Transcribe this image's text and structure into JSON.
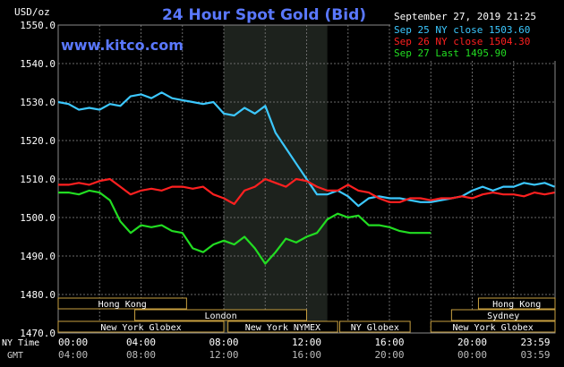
{
  "chart_data": {
    "type": "line",
    "title": "24 Hour Spot Gold (Bid)",
    "watermark": "www.kitco.com",
    "timestamp": "September 27, 2019 21:25",
    "ylabel": "USD/oz",
    "ylim": [
      1470,
      1550
    ],
    "y_ticks": [
      "1550.0",
      "1540.0",
      "1530.0",
      "1520.0",
      "1510.0",
      "1500.0",
      "1490.0",
      "1480.0",
      "1470.0"
    ],
    "x_row1_label": "NY Time",
    "x_row2_label": "GMT",
    "x_ticks_ny": [
      "00:00",
      "04:00",
      "08:00",
      "12:00",
      "16:00",
      "20:00",
      "23:59"
    ],
    "x_ticks_gmt": [
      "04:00",
      "08:00",
      "12:00",
      "16:00",
      "20:00",
      "00:00",
      "03:59"
    ],
    "grid": true,
    "background": "#000000",
    "grid_color": "#6a6a6a",
    "shaded_hours": [
      8,
      13
    ],
    "legend": [
      {
        "label": "Sep 25 NY close 1503.60",
        "color": "#3cc8ff"
      },
      {
        "label": "Sep 26 NY close 1504.30",
        "color": "#ff2020"
      },
      {
        "label": "Sep 27 Last 1495.90",
        "color": "#22dd22"
      }
    ],
    "series": [
      {
        "name": "Sep 25",
        "color": "#3cc8ff",
        "x": [
          0,
          0.5,
          1,
          1.5,
          2,
          2.5,
          3,
          3.5,
          4,
          4.5,
          5,
          5.5,
          6,
          6.5,
          7,
          7.5,
          8,
          8.5,
          9,
          9.5,
          10,
          10.5,
          11,
          11.5,
          12,
          12.5,
          13,
          13.5,
          14,
          14.5,
          15,
          15.5,
          16,
          16.5,
          17,
          17.5,
          18,
          18.5,
          19,
          19.5,
          20,
          20.5,
          21,
          21.5,
          22,
          22.5,
          23,
          23.5,
          23.98
        ],
        "y": [
          1530,
          1529.5,
          1528,
          1528.5,
          1528,
          1529.5,
          1529,
          1531.5,
          1532,
          1531,
          1532.5,
          1531,
          1530.5,
          1530,
          1529.5,
          1530,
          1527,
          1526.5,
          1528.5,
          1527,
          1529,
          1522,
          1518,
          1514,
          1510,
          1506,
          1506,
          1507,
          1505.5,
          1503,
          1505,
          1505.5,
          1505,
          1505,
          1504.5,
          1504,
          1504,
          1504.5,
          1505,
          1505.5,
          1507,
          1508,
          1507,
          1508,
          1508,
          1509,
          1508.5,
          1509,
          1508
        ]
      },
      {
        "name": "Sep 26",
        "color": "#ff2020",
        "x": [
          0,
          0.5,
          1,
          1.5,
          2,
          2.5,
          3,
          3.5,
          4,
          4.5,
          5,
          5.5,
          6,
          6.5,
          7,
          7.5,
          8,
          8.5,
          9,
          9.5,
          10,
          10.5,
          11,
          11.5,
          12,
          12.5,
          13,
          13.5,
          14,
          14.5,
          15,
          15.5,
          16,
          16.5,
          17,
          17.5,
          18,
          18.5,
          19,
          19.5,
          20,
          20.5,
          21,
          21.5,
          22,
          22.5,
          23,
          23.5,
          23.98
        ],
        "y": [
          1508.5,
          1508.5,
          1509,
          1508.5,
          1509.5,
          1510,
          1508,
          1506,
          1507,
          1507.5,
          1507,
          1508,
          1508,
          1507.5,
          1508,
          1506,
          1505,
          1503.5,
          1507,
          1508,
          1510,
          1509,
          1508,
          1510,
          1509.5,
          1508,
          1507,
          1507,
          1508.5,
          1507,
          1506.5,
          1505,
          1504,
          1504,
          1505,
          1505,
          1504.5,
          1505,
          1505,
          1505.5,
          1505,
          1506,
          1506.5,
          1506,
          1506,
          1505.5,
          1506.5,
          1506,
          1506.5
        ]
      },
      {
        "name": "Sep 27",
        "color": "#22dd22",
        "x": [
          0,
          0.5,
          1,
          1.5,
          2,
          2.5,
          3,
          3.5,
          4,
          4.5,
          5,
          5.5,
          6,
          6.5,
          7,
          7.5,
          8,
          8.5,
          9,
          9.5,
          10,
          10.5,
          11,
          11.5,
          12,
          12.5,
          13,
          13.5,
          14,
          14.5,
          15,
          15.5,
          16,
          16.5,
          17,
          17.5,
          18
        ],
        "y": [
          1506.5,
          1506.5,
          1506,
          1507,
          1506.5,
          1504.5,
          1499,
          1496,
          1498,
          1497.5,
          1498,
          1496.5,
          1496,
          1492,
          1491,
          1493,
          1494,
          1493,
          1495,
          1492,
          1488,
          1491,
          1494.5,
          1493.5,
          1495,
          1496,
          1499.5,
          1501,
          1500,
          1500.5,
          1498,
          1498,
          1497.5,
          1496.5,
          1496,
          1496,
          1496
        ]
      }
    ],
    "sessions": [
      {
        "label": "Hong Kong",
        "row": 0,
        "start": 0,
        "end": 6.2
      },
      {
        "label": "London",
        "row": 1,
        "start": 3.7,
        "end": 12
      },
      {
        "label": "New York Globex",
        "row": 2,
        "start": 0,
        "end": 8
      },
      {
        "label": "New York NYMEX",
        "row": 2,
        "start": 8.2,
        "end": 13.5
      },
      {
        "label": "NY Globex",
        "row": 2,
        "start": 13.6,
        "end": 17
      },
      {
        "label": "Hong Kong",
        "row": 0,
        "start": 20.3,
        "end": 24
      },
      {
        "label": "Sydney",
        "row": 1,
        "start": 19,
        "end": 24
      },
      {
        "label": "New York Globex",
        "row": 2,
        "start": 18,
        "end": 24
      }
    ]
  }
}
